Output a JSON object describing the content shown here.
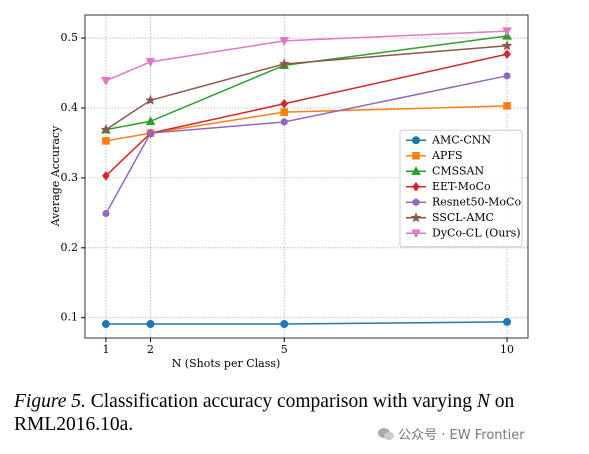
{
  "chart_data": {
    "type": "line",
    "xlabel": "N (Shots per Class)",
    "ylabel": "Average Accuracy",
    "xlim": [
      0.53,
      10.47
    ],
    "ylim": [
      0.071,
      0.533
    ],
    "xticks": [
      1,
      2,
      5,
      10
    ],
    "yticks": [
      0.1,
      0.2,
      0.3,
      0.4,
      0.5
    ],
    "grid": true,
    "legend": "center right",
    "x": [
      1,
      2,
      5,
      10
    ],
    "series": [
      {
        "name": "AMC-CNN",
        "color": "#1f77b4",
        "marker": "o",
        "values": [
          0.091,
          0.091,
          0.091,
          0.094
        ]
      },
      {
        "name": "APFS",
        "color": "#ff7f0e",
        "marker": "s",
        "values": [
          0.353,
          0.364,
          0.394,
          0.403
        ]
      },
      {
        "name": "CMSSAN",
        "color": "#2ca02c",
        "marker": "^",
        "values": [
          0.369,
          0.381,
          0.461,
          0.503
        ]
      },
      {
        "name": "EET-MoCo",
        "color": "#d62728",
        "marker": "D",
        "values": [
          0.303,
          0.364,
          0.406,
          0.477
        ]
      },
      {
        "name": "Resnet50-MoCo",
        "color": "#9467bd",
        "marker": "h",
        "values": [
          0.249,
          0.364,
          0.38,
          0.446
        ]
      },
      {
        "name": "SSCL-AMC",
        "color": "#8c564b",
        "marker": "*",
        "values": [
          0.369,
          0.411,
          0.463,
          0.489
        ]
      },
      {
        "name": "DyCo-CL (Ours)",
        "color": "#e377c2",
        "marker": "v",
        "values": [
          0.439,
          0.466,
          0.496,
          0.51
        ]
      }
    ]
  },
  "caption": {
    "label": "Figure 5.",
    "text": "Classification accuracy comparison with varying",
    "variable": "N",
    "tail": "on RML2016.10a."
  },
  "watermark": "公众号 · EW Frontier"
}
